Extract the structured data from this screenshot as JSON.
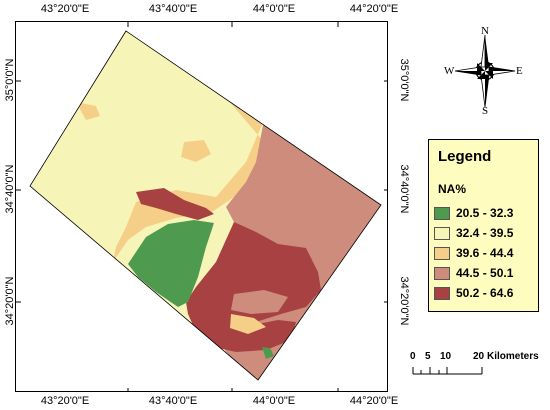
{
  "map": {
    "lon_labels": [
      "43°20'0\"E",
      "43°40'0\"E",
      "44°0'0\"E",
      "44°20'0\"E"
    ],
    "lat_labels_left": [
      "35°0'0\"N",
      "34°40'0\"N",
      "34°20'0\"N"
    ],
    "lat_labels_right": [
      "35°0'0\"N",
      "34°40'0\"N",
      "34°20'0\"N"
    ]
  },
  "compass": {
    "n": "N",
    "s": "S",
    "e": "E",
    "w": "W"
  },
  "legend": {
    "title": "Legend",
    "field": "NA%",
    "classes": [
      {
        "label": "20.5 - 32.3",
        "color": "#4e9a4e"
      },
      {
        "label": "32.4 - 39.5",
        "color": "#f7f4b8"
      },
      {
        "label": "39.6 - 44.4",
        "color": "#f5cf87"
      },
      {
        "label": "44.5 - 50.1",
        "color": "#cd8c7c"
      },
      {
        "label": "50.2 - 64.6",
        "color": "#a84242"
      }
    ]
  },
  "scale": {
    "ticks": [
      "0",
      "5",
      "10",
      "20"
    ],
    "unit": "Kilometers"
  }
}
